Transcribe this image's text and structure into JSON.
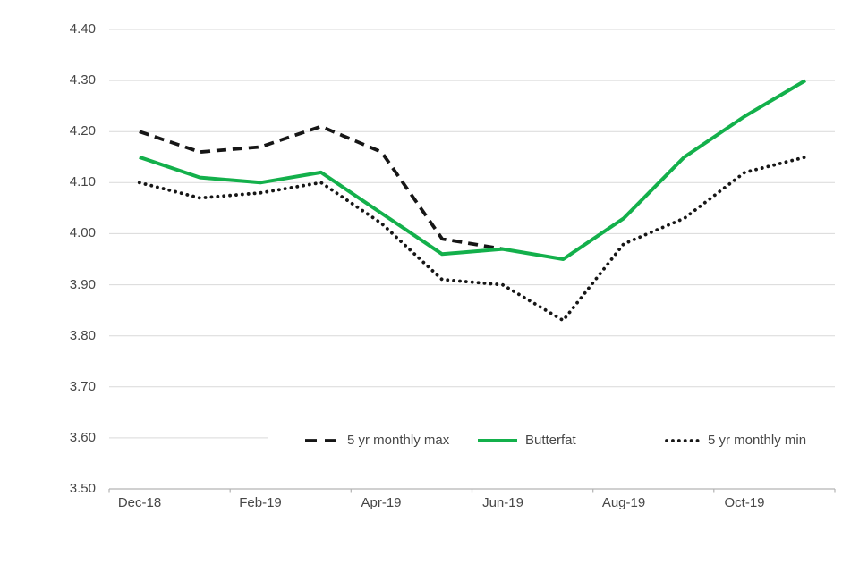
{
  "chart_data": {
    "type": "line",
    "title": "",
    "xlabel": "",
    "ylabel": "",
    "x": [
      "Dec-18",
      "Jan-19",
      "Feb-19",
      "Mar-19",
      "Apr-19",
      "May-19",
      "Jun-19",
      "Jul-19",
      "Aug-19",
      "Sep-19",
      "Oct-19",
      "Nov-19"
    ],
    "x_tick_labels": [
      "Dec-18",
      "Feb-19",
      "Apr-19",
      "Jun-19",
      "Aug-19",
      "Oct-19"
    ],
    "x_tick_indices": [
      0,
      2,
      4,
      6,
      8,
      10
    ],
    "y_tick_labels": [
      "3.50",
      "3.60",
      "3.70",
      "3.80",
      "3.90",
      "4.00",
      "4.10",
      "4.20",
      "4.30",
      "4.40"
    ],
    "y_tick_values": [
      3.5,
      3.6,
      3.7,
      3.8,
      3.9,
      4.0,
      4.1,
      4.2,
      4.3,
      4.4
    ],
    "ylim": [
      3.5,
      4.4
    ],
    "grid": true,
    "legend_position": "bottom",
    "colors": {
      "butterfat_green": "#13b04b",
      "band_black": "#161616",
      "gridline_grey": "#d9d9d9",
      "axis_grey": "#b3b3b3",
      "label_grey": "#474747"
    },
    "series": [
      {
        "name": "5 yr monthly max",
        "style": "dashed",
        "color": "#161616",
        "values": [
          4.2,
          4.16,
          4.17,
          4.21,
          4.16,
          3.99,
          3.97,
          null,
          null,
          null,
          null,
          null
        ]
      },
      {
        "name": "Butterfat",
        "style": "solid",
        "color": "#13b04b",
        "values": [
          4.15,
          4.11,
          4.1,
          4.12,
          4.04,
          3.96,
          3.97,
          3.95,
          4.03,
          4.15,
          4.23,
          4.3
        ]
      },
      {
        "name": "5 yr monthly min",
        "style": "dotted",
        "color": "#161616",
        "values": [
          4.1,
          4.07,
          4.08,
          4.1,
          4.02,
          3.91,
          3.9,
          3.83,
          3.98,
          4.03,
          4.12,
          4.15
        ]
      }
    ]
  }
}
